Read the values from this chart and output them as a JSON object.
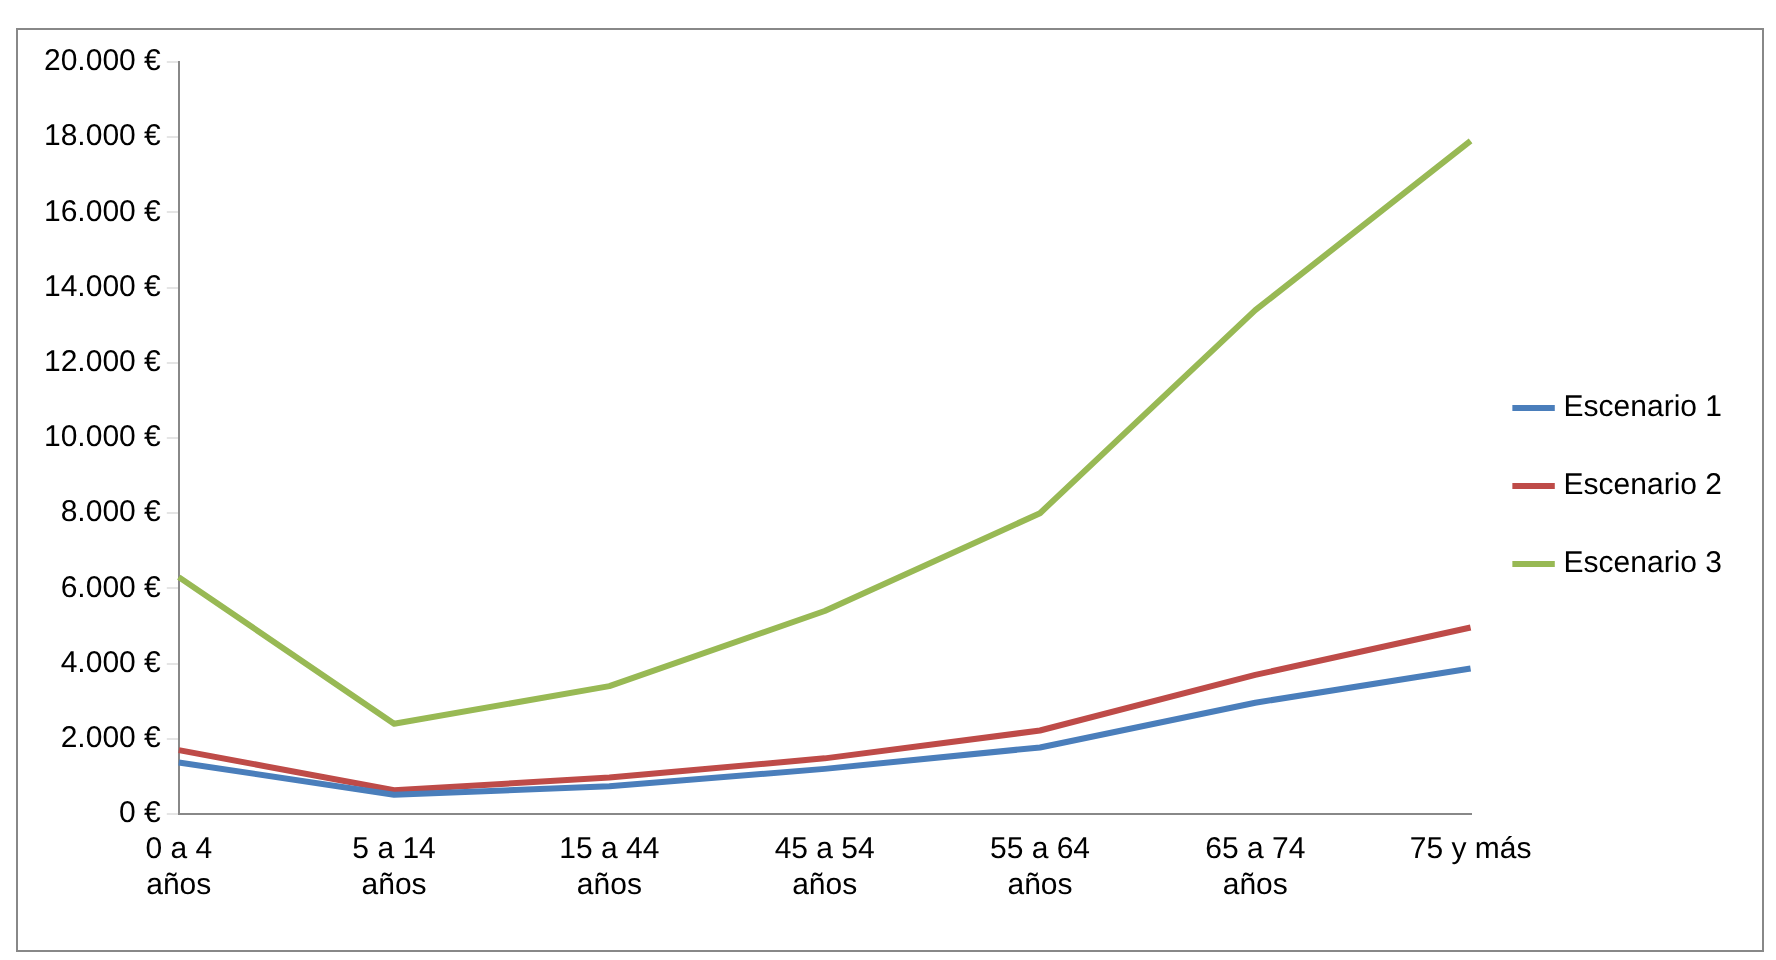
{
  "chart_data": {
    "type": "line",
    "categories": [
      "0 a 4 años",
      "5 a 14 años",
      "15 a 44 años",
      "45 a 54 años",
      "55 a 64 años",
      "65 a 74 años",
      "75 y más"
    ],
    "series": [
      {
        "name": "Escenario 1",
        "color": "#4a7ebb",
        "values": [
          1370,
          510,
          740,
          1200,
          1770,
          2960,
          3870
        ]
      },
      {
        "name": "Escenario 2",
        "color": "#be4b48",
        "values": [
          1700,
          630,
          970,
          1480,
          2220,
          3700,
          4960
        ]
      },
      {
        "name": "Escenario 3",
        "color": "#98b954",
        "values": [
          6300,
          2400,
          3400,
          5400,
          8000,
          13400,
          17900
        ]
      }
    ],
    "ylim": [
      0,
      20000
    ],
    "yticks": [
      {
        "value": 0,
        "label": "0 €"
      },
      {
        "value": 2000,
        "label": "2.000 €"
      },
      {
        "value": 4000,
        "label": "4.000 €"
      },
      {
        "value": 6000,
        "label": "6.000 €"
      },
      {
        "value": 8000,
        "label": "8.000 €"
      },
      {
        "value": 10000,
        "label": "10.000 €"
      },
      {
        "value": 12000,
        "label": "12.000 €"
      },
      {
        "value": 14000,
        "label": "14.000 €"
      },
      {
        "value": 16000,
        "label": "16.000 €"
      },
      {
        "value": 18000,
        "label": "18.000 €"
      },
      {
        "value": 20000,
        "label": "20.000 €"
      }
    ],
    "grid": false,
    "legend": "right",
    "marker": "none",
    "line_style": "solid"
  }
}
